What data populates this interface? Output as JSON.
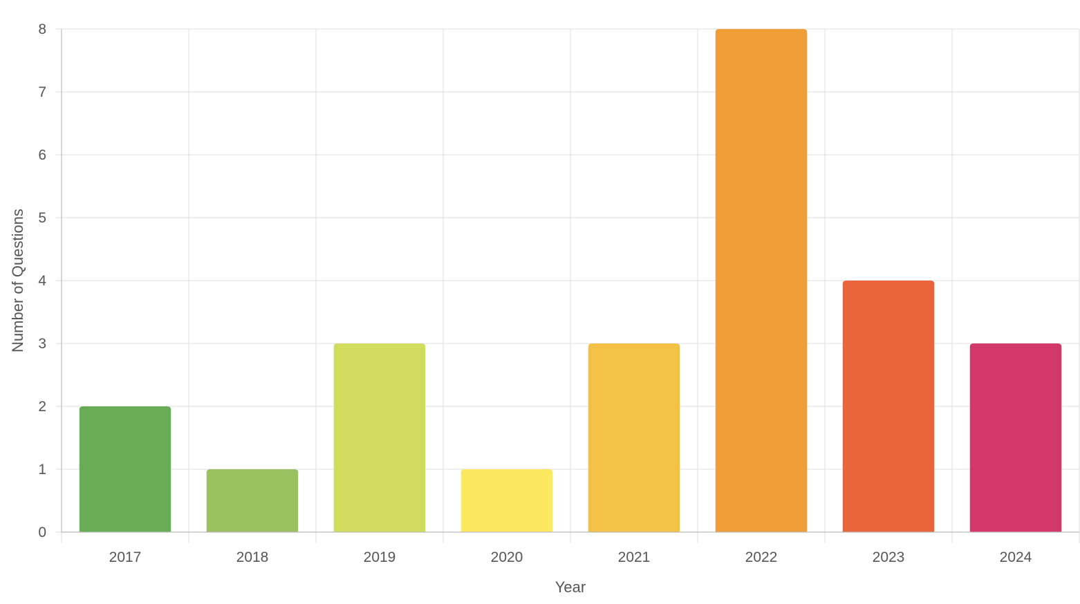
{
  "chart_data": {
    "type": "bar",
    "title": "",
    "xlabel": "Year",
    "ylabel": "Number of Questions",
    "categories": [
      "2017",
      "2018",
      "2019",
      "2020",
      "2021",
      "2022",
      "2023",
      "2024"
    ],
    "values": [
      2,
      1,
      3,
      1,
      3,
      8,
      4,
      3
    ],
    "colors": [
      "#69ac58",
      "#99c15f",
      "#d1dc5c",
      "#fde95f",
      "#f2c145",
      "#ef9d38",
      "#e9643a",
      "#d33968"
    ],
    "ylim": [
      0,
      8
    ],
    "yticks": [
      0,
      1,
      2,
      3,
      4,
      5,
      6,
      7,
      8
    ],
    "grid": true,
    "legend": "none"
  }
}
